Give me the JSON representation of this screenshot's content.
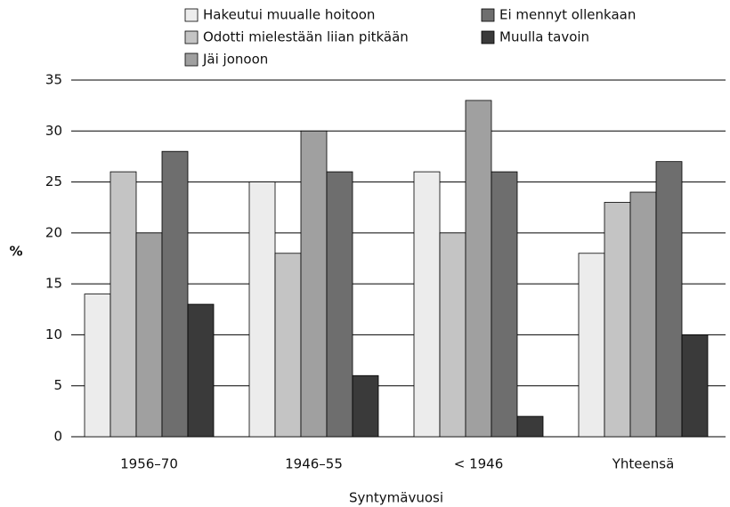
{
  "chart_data": {
    "type": "bar",
    "categories": [
      "1956–70",
      "1946–55",
      "< 1946",
      "Yhteensä"
    ],
    "series": [
      {
        "name": "Hakeutui muualle hoitoon",
        "color": "#ececec",
        "values": [
          14,
          25,
          26,
          18
        ]
      },
      {
        "name": "Odotti mielestään liian pitkään",
        "color": "#c4c4c4",
        "values": [
          26,
          18,
          20,
          23
        ]
      },
      {
        "name": "Jäi jonoon",
        "color": "#a0a0a0",
        "values": [
          20,
          30,
          33,
          24
        ]
      },
      {
        "name": "Ei mennyt ollenkaan",
        "color": "#6e6e6e",
        "values": [
          28,
          26,
          26,
          27
        ]
      },
      {
        "name": "Muulla tavoin",
        "color": "#3a3a3a",
        "values": [
          13,
          6,
          2,
          10
        ]
      }
    ],
    "ylabel": "%",
    "xlabel": "Syntymävuosi",
    "ylim": [
      0,
      35
    ],
    "yticks": [
      0,
      5,
      10,
      15,
      20,
      25,
      30,
      35
    ],
    "grid": true
  }
}
